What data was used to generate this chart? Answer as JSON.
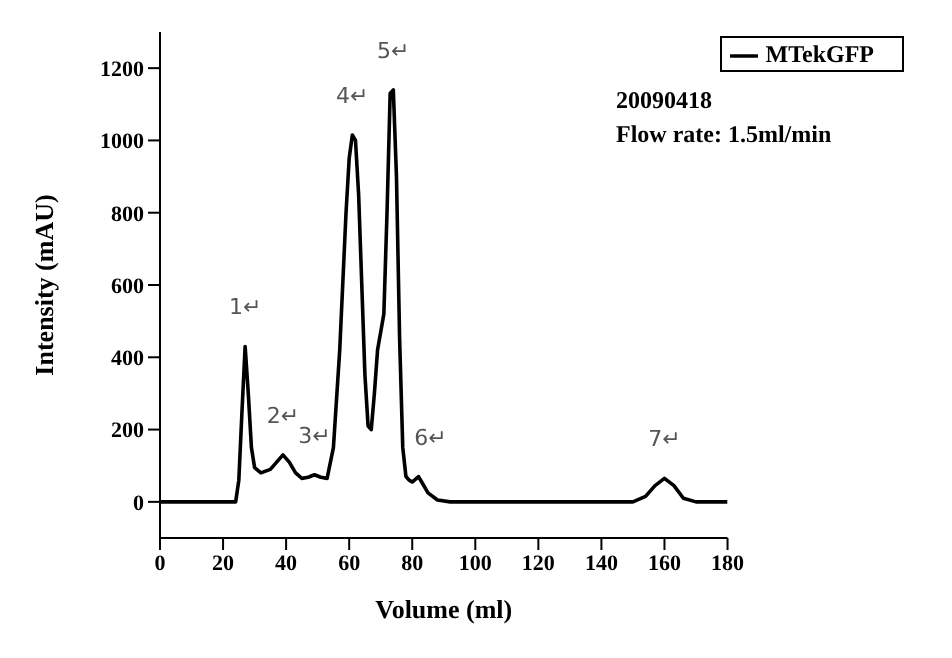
{
  "chart_data": {
    "type": "line",
    "xlabel": "Volume (ml)",
    "ylabel": "Intensity (mAU)",
    "xlim": [
      0,
      180
    ],
    "xticks": [
      0,
      20,
      40,
      60,
      80,
      100,
      120,
      140,
      160,
      180
    ],
    "ylim": [
      -100,
      1300
    ],
    "yticks": [
      0,
      200,
      400,
      600,
      800,
      1000,
      1200
    ],
    "legend": "top right",
    "marker": "none",
    "line_style": "solid",
    "series": [
      {
        "name": "MTekGFP",
        "color": "#000000",
        "x": [
          0,
          10,
          20,
          24,
          25,
          26,
          27,
          28,
          29,
          30,
          32,
          35,
          37,
          39,
          41,
          43,
          45,
          47,
          49,
          51,
          53,
          55,
          57,
          59,
          60,
          61,
          62,
          63,
          64,
          65,
          66,
          67,
          68,
          69,
          70,
          71,
          72,
          73,
          74,
          75,
          76,
          77,
          78,
          79,
          80,
          81,
          82,
          83,
          85,
          88,
          92,
          100,
          120,
          150,
          154,
          157,
          160,
          163,
          166,
          170,
          180
        ],
        "values": [
          0,
          0,
          0,
          0,
          60,
          250,
          430,
          300,
          150,
          95,
          80,
          90,
          110,
          130,
          110,
          80,
          65,
          68,
          75,
          68,
          65,
          150,
          420,
          800,
          950,
          1015,
          1000,
          850,
          600,
          350,
          210,
          200,
          300,
          420,
          470,
          520,
          800,
          1130,
          1140,
          900,
          450,
          150,
          70,
          60,
          55,
          62,
          70,
          55,
          25,
          5,
          0,
          0,
          0,
          0,
          15,
          45,
          65,
          45,
          10,
          0,
          0
        ]
      }
    ],
    "annotations": [
      {
        "text": "1↵",
        "x": 27,
        "y": 430
      },
      {
        "text": "2↵",
        "x": 39,
        "y": 130
      },
      {
        "text": "3↵",
        "x": 49,
        "y": 75
      },
      {
        "text": "4↵",
        "x": 61,
        "y": 1015
      },
      {
        "text": "5↵",
        "x": 74,
        "y": 1140
      },
      {
        "text": "6↵",
        "x": 82,
        "y": 70
      },
      {
        "text": "7↵",
        "x": 160,
        "y": 65
      },
      "20090418",
      "Flow rate: 1.5ml/min"
    ]
  }
}
